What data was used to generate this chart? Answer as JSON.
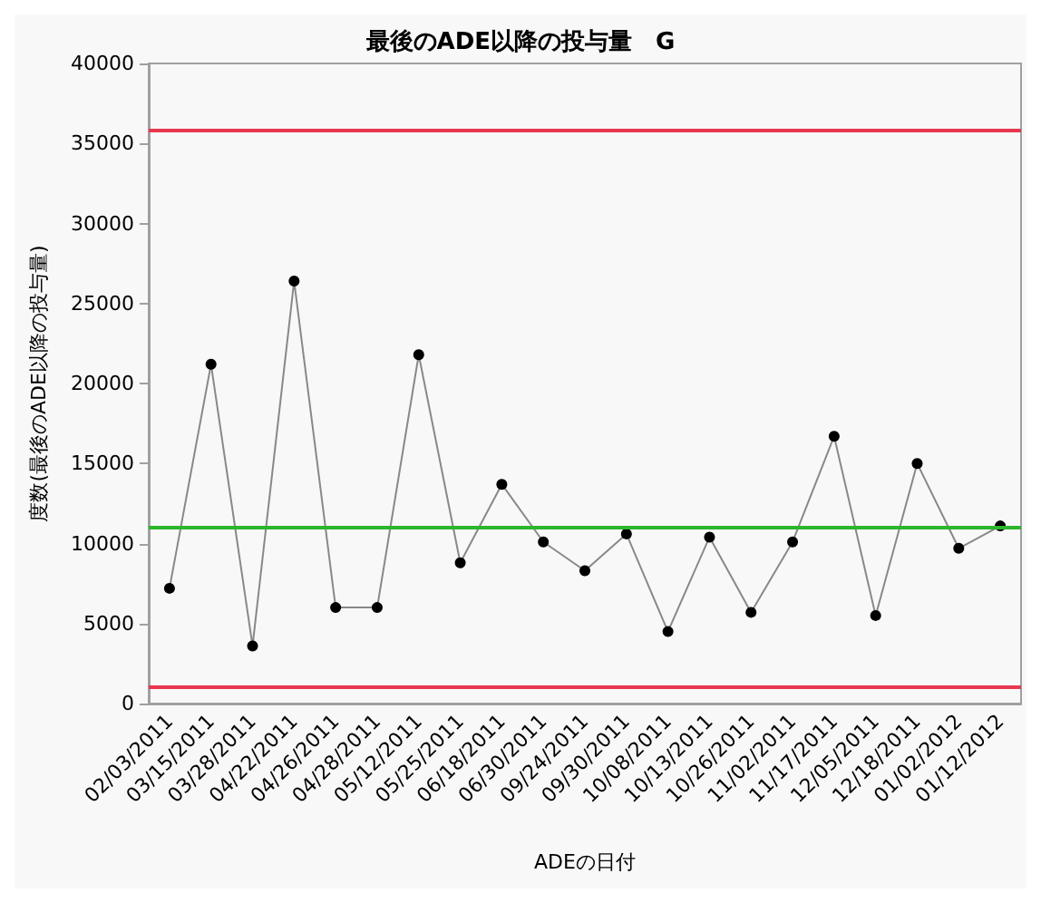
{
  "chart_data": {
    "type": "line",
    "title": "最後のADE以降の投与量　G",
    "xlabel": "ADEの日付",
    "ylabel": "度数(最後のADE以降の投与量)",
    "categories": [
      "02/03/2011",
      "03/15/2011",
      "03/28/2011",
      "04/22/2011",
      "04/26/2011",
      "04/28/2011",
      "05/12/2011",
      "05/25/2011",
      "06/18/2011",
      "06/30/2011",
      "09/24/2011",
      "09/30/2011",
      "10/08/2011",
      "10/13/2011",
      "10/26/2011",
      "11/02/2011",
      "11/17/2011",
      "12/05/2011",
      "12/18/2011",
      "01/02/2012",
      "01/12/2012"
    ],
    "series": [
      {
        "color": "#000000",
        "values": [
          7200,
          21200,
          3600,
          26400,
          6000,
          6000,
          21800,
          8800,
          13700,
          10100,
          8300,
          10600,
          4500,
          10400,
          5700,
          10100,
          16700,
          5500,
          15000,
          9700,
          11100
        ]
      }
    ],
    "ylim": [
      0,
      40000
    ],
    "yticks": [
      0,
      5000,
      10000,
      15000,
      20000,
      25000,
      30000,
      35000,
      40000
    ],
    "ref_lines": [
      {
        "axis": "y",
        "value": 35800,
        "color": "#e8384f"
      },
      {
        "axis": "y",
        "value": 11000,
        "color": "#2db52d"
      },
      {
        "axis": "y",
        "value": 1100,
        "color": "#e8384f"
      }
    ],
    "marker": "circle",
    "line_style": "solid"
  }
}
